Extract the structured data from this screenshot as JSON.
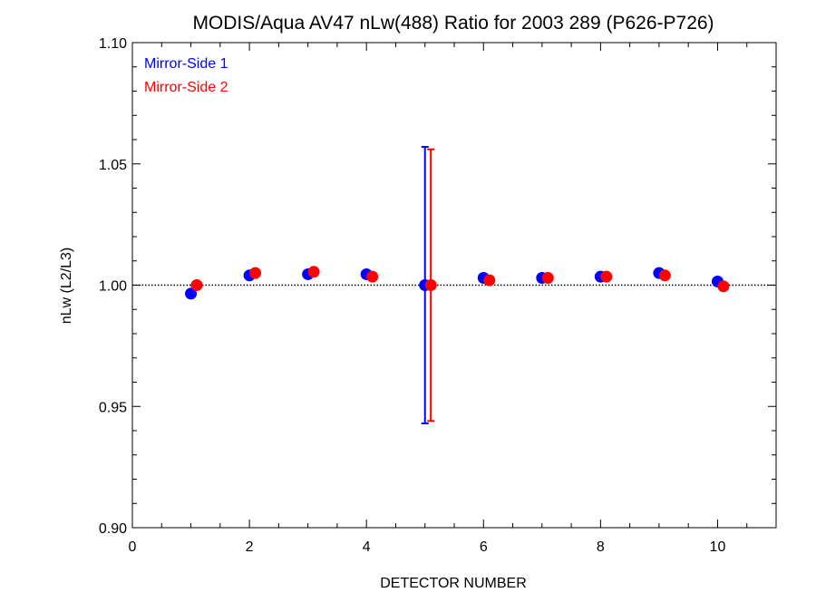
{
  "chart_data": {
    "type": "scatter",
    "title": "MODIS/Aqua AV47 nLw(488) Ratio for 2003 289 (P626-P726)",
    "xlabel": "DETECTOR NUMBER",
    "ylabel": "nLw (L2/L3)",
    "xlim": [
      0,
      11
    ],
    "ylim": [
      0.9,
      1.1
    ],
    "xticks": [
      0,
      2,
      4,
      6,
      8,
      10
    ],
    "xtick_labels": [
      "0",
      "2",
      "4",
      "6",
      "8",
      "10"
    ],
    "yticks": [
      0.9,
      0.95,
      1.0,
      1.05,
      1.1
    ],
    "ytick_labels": [
      "0.90",
      "0.95",
      "1.00",
      "1.05",
      "1.10"
    ],
    "reference_line": 1.0,
    "grid": false,
    "legend_placement": "top-left",
    "series": [
      {
        "name": "Mirror-Side 1",
        "color": "#0000ff",
        "x": [
          1,
          2,
          3,
          4,
          5,
          6,
          7,
          8,
          9,
          10
        ],
        "y": [
          0.9965,
          1.004,
          1.0045,
          1.0045,
          1.0,
          1.003,
          1.003,
          1.0035,
          1.005,
          1.0015
        ],
        "error_bars": [
          {
            "x": 5,
            "low": 0.943,
            "high": 1.057
          }
        ]
      },
      {
        "name": "Mirror-Side 2",
        "color": "#ff0000",
        "x": [
          1.1,
          2.1,
          3.1,
          4.1,
          5.1,
          6.1,
          7.1,
          8.1,
          9.1,
          10.1
        ],
        "y": [
          1.0,
          1.005,
          1.0055,
          1.0035,
          1.0,
          1.002,
          1.003,
          1.0035,
          1.004,
          0.9995
        ],
        "error_bars": [
          {
            "x": 5.1,
            "low": 0.944,
            "high": 1.056
          }
        ]
      }
    ]
  }
}
